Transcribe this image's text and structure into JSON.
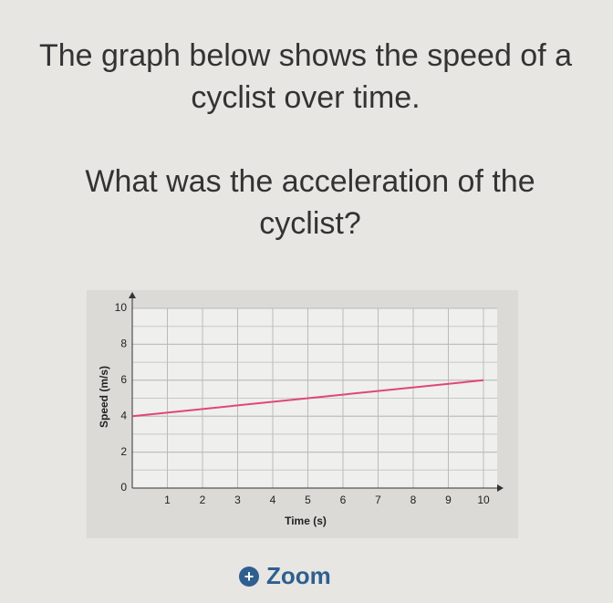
{
  "question": {
    "intro": "The graph below shows the speed of a cyclist over time.",
    "prompt": "What was the acceleration of the cyclist?"
  },
  "chart_data": {
    "type": "line",
    "x_label": "Time (s)",
    "y_label": "Speed (m/s)",
    "x": [
      0,
      10
    ],
    "series": [
      {
        "color": "#e0457b",
        "values": [
          4,
          6
        ]
      }
    ],
    "xlim": [
      0,
      10
    ],
    "ylim": [
      0,
      10
    ],
    "xticks": [
      1,
      2,
      3,
      4,
      5,
      6,
      7,
      8,
      9,
      10
    ],
    "yticks": [
      0,
      2,
      4,
      6,
      8,
      10
    ],
    "grid": true
  },
  "zoom": "Zoom"
}
